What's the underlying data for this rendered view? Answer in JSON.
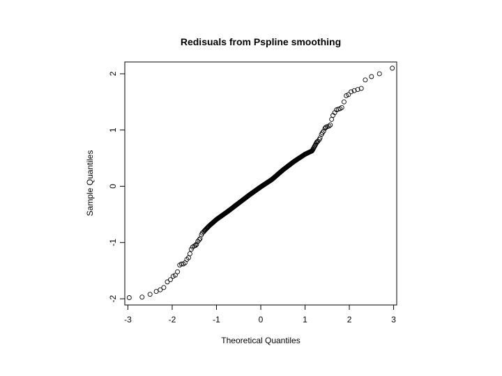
{
  "chart_data": {
    "type": "scatter",
    "title": "Redisuals from Pspline smoothing",
    "xlabel": "Theoretical Quantiles",
    "ylabel": "Sample Quantiles",
    "xlim": [
      -3.07,
      3.07
    ],
    "ylim": [
      -2.11,
      2.21
    ],
    "x_ticks": [
      -3,
      -2,
      -1,
      0,
      1,
      2,
      3
    ],
    "y_ticks": [
      -2,
      -1,
      0,
      1,
      2
    ],
    "grid": false,
    "marker": "open-circle",
    "n_points": 400,
    "points": [
      [
        -2.97,
        -1.98
      ],
      [
        -2.68,
        -1.97
      ],
      [
        -2.5,
        -1.92
      ],
      [
        -2.36,
        -1.87
      ],
      [
        -2.27,
        -1.84
      ],
      [
        -2.19,
        -1.8
      ],
      [
        -2.11,
        -1.7
      ],
      [
        -2.04,
        -1.66
      ],
      [
        -1.98,
        -1.6
      ],
      [
        -1.93,
        -1.58
      ],
      [
        -1.88,
        -1.52
      ],
      [
        -1.83,
        -1.4
      ],
      [
        -1.79,
        -1.38
      ],
      [
        -1.75,
        -1.38
      ],
      [
        -1.71,
        -1.36
      ],
      [
        -1.67,
        -1.3
      ],
      [
        -1.63,
        -1.27
      ],
      [
        -1.6,
        -1.2
      ],
      [
        -1.57,
        -1.12
      ],
      [
        -1.54,
        -1.08
      ],
      [
        -1.5,
        -1.06
      ],
      [
        -1.47,
        -1.05
      ],
      [
        -1.45,
        -1.03
      ],
      [
        -1.42,
        -0.98
      ],
      [
        -1.39,
        -0.95
      ],
      [
        -1.37,
        -0.93
      ],
      [
        -1.34,
        -0.86
      ],
      [
        -1.32,
        -0.83
      ],
      [
        -1.29,
        -0.81
      ],
      [
        -1.27,
        -0.79
      ],
      [
        -1.16,
        -0.7
      ],
      [
        -1.0,
        -0.59
      ],
      [
        -0.75,
        -0.45
      ],
      [
        -0.5,
        -0.3
      ],
      [
        -0.25,
        -0.15
      ],
      [
        0.0,
        -0.01
      ],
      [
        0.25,
        0.12
      ],
      [
        0.5,
        0.29
      ],
      [
        0.75,
        0.44
      ],
      [
        1.0,
        0.57
      ],
      [
        1.16,
        0.63
      ],
      [
        1.27,
        0.79
      ],
      [
        1.29,
        0.8
      ],
      [
        1.32,
        0.83
      ],
      [
        1.34,
        0.86
      ],
      [
        1.37,
        0.92
      ],
      [
        1.39,
        0.95
      ],
      [
        1.42,
        0.98
      ],
      [
        1.45,
        1.03
      ],
      [
        1.47,
        1.05
      ],
      [
        1.5,
        1.06
      ],
      [
        1.54,
        1.07
      ],
      [
        1.57,
        1.09
      ],
      [
        1.6,
        1.19
      ],
      [
        1.63,
        1.26
      ],
      [
        1.67,
        1.31
      ],
      [
        1.71,
        1.36
      ],
      [
        1.75,
        1.37
      ],
      [
        1.79,
        1.38
      ],
      [
        1.83,
        1.4
      ],
      [
        1.88,
        1.5
      ],
      [
        1.93,
        1.61
      ],
      [
        1.98,
        1.63
      ],
      [
        2.04,
        1.68
      ],
      [
        2.11,
        1.7
      ],
      [
        2.19,
        1.72
      ],
      [
        2.27,
        1.74
      ],
      [
        2.36,
        1.89
      ],
      [
        2.5,
        1.95
      ],
      [
        2.68,
        2.0
      ],
      [
        2.97,
        2.1
      ]
    ]
  }
}
